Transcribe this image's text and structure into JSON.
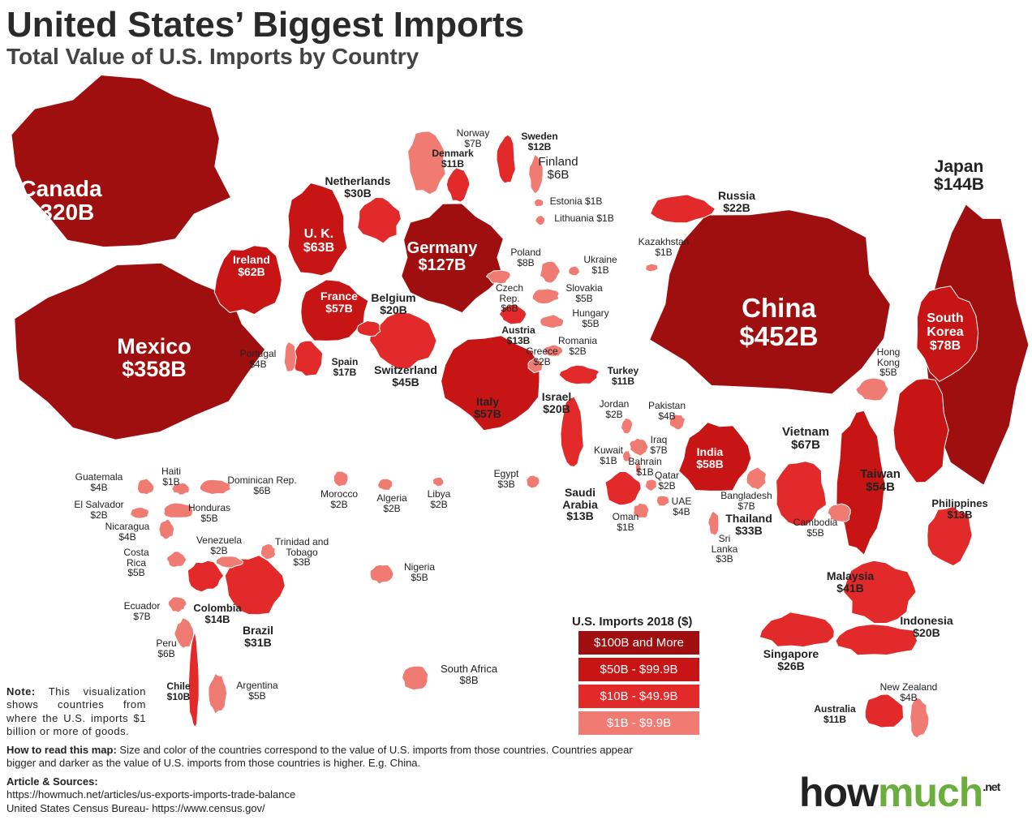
{
  "header": {
    "title": "United States’ Biggest Imports",
    "subtitle": "Total Value of U.S. Imports by Country"
  },
  "legend": {
    "title": "U.S. Imports 2018 ($)",
    "items": [
      {
        "label": "$100B and More",
        "color": "#a00f0f"
      },
      {
        "label": "$50B - $99.9B",
        "color": "#c71515"
      },
      {
        "label": "$10B - $49.9B",
        "color": "#e22a2a"
      },
      {
        "label": "$1B - $9.9B",
        "color": "#ef7b73"
      }
    ]
  },
  "countries": [
    {
      "name": "Canada",
      "value": "$320B",
      "color": "#a00f0f"
    },
    {
      "name": "Mexico",
      "value": "$358B",
      "color": "#a00f0f"
    },
    {
      "name": "Japan",
      "value": "$144B",
      "color": "#a00f0f"
    },
    {
      "name": "China",
      "value": "$452B",
      "color": "#a00f0f"
    },
    {
      "name": "Germany",
      "value": "$127B",
      "color": "#a00f0f"
    },
    {
      "name": "South Korea",
      "value": "$78B",
      "color": "#c71515"
    },
    {
      "name": "Vietnam",
      "value": "$67B",
      "color": "#c71515"
    },
    {
      "name": "U. K.",
      "value": "$63B",
      "color": "#c71515"
    },
    {
      "name": "Ireland",
      "value": "$62B",
      "color": "#c71515"
    },
    {
      "name": "France",
      "value": "$57B",
      "color": "#c71515"
    },
    {
      "name": "Italy",
      "value": "$57B",
      "color": "#c71515"
    },
    {
      "name": "Taiwan",
      "value": "$54B",
      "color": "#c71515"
    },
    {
      "name": "India",
      "value": "$58B",
      "color": "#c71515"
    },
    {
      "name": "Switzerland",
      "value": "$45B",
      "color": "#e22a2a"
    },
    {
      "name": "Malaysia",
      "value": "$41B",
      "color": "#e22a2a"
    },
    {
      "name": "Thailand",
      "value": "$33B",
      "color": "#e22a2a"
    },
    {
      "name": "Brazil",
      "value": "$31B",
      "color": "#e22a2a"
    },
    {
      "name": "Netherlands",
      "value": "$30B",
      "color": "#e22a2a"
    },
    {
      "name": "Singapore",
      "value": "$26B",
      "color": "#e22a2a"
    },
    {
      "name": "Russia",
      "value": "$22B",
      "color": "#e22a2a"
    },
    {
      "name": "Indonesia",
      "value": "$20B",
      "color": "#e22a2a"
    },
    {
      "name": "Belgium",
      "value": "$20B",
      "color": "#e22a2a"
    },
    {
      "name": "Israel",
      "value": "$20B",
      "color": "#e22a2a"
    },
    {
      "name": "Colombia",
      "value": "$14B",
      "color": "#e22a2a"
    },
    {
      "name": "Saudi Arabia",
      "value": "$13B",
      "color": "#e22a2a"
    },
    {
      "name": "Philippines",
      "value": "$13B",
      "color": "#e22a2a"
    },
    {
      "name": "Austria",
      "value": "$13B",
      "color": "#e22a2a"
    },
    {
      "name": "Sweden",
      "value": "$12B",
      "color": "#e22a2a"
    },
    {
      "name": "Denmark",
      "value": "$11B",
      "color": "#e22a2a"
    },
    {
      "name": "Turkey",
      "value": "$11B",
      "color": "#e22a2a"
    },
    {
      "name": "Australia",
      "value": "$11B",
      "color": "#e22a2a"
    },
    {
      "name": "Chile",
      "value": "$10B",
      "color": "#e22a2a"
    },
    {
      "name": "Poland",
      "value": "$8B",
      "color": "#ef7b73"
    },
    {
      "name": "South Africa",
      "value": "$8B",
      "color": "#ef7b73"
    },
    {
      "name": "Norway",
      "value": "$7B",
      "color": "#ef7b73"
    },
    {
      "name": "Ecuador",
      "value": "$7B",
      "color": "#ef7b73"
    },
    {
      "name": "Iraq",
      "value": "$7B",
      "color": "#ef7b73"
    },
    {
      "name": "Bangladesh",
      "value": "$7B",
      "color": "#ef7b73"
    },
    {
      "name": "Finland",
      "value": "$6B",
      "color": "#ef7b73"
    },
    {
      "name": "Czech Rep.",
      "value": "$6B",
      "color": "#ef7b73"
    },
    {
      "name": "Peru",
      "value": "$6B",
      "color": "#ef7b73"
    },
    {
      "name": "Dominican Rep.",
      "value": "$6B",
      "color": "#ef7b73"
    },
    {
      "name": "Argentina",
      "value": "$5B",
      "color": "#ef7b73"
    },
    {
      "name": "Hong Kong",
      "value": "$5B",
      "color": "#ef7b73"
    },
    {
      "name": "Slovakia",
      "value": "$5B",
      "color": "#ef7b73"
    },
    {
      "name": "Hungary",
      "value": "$5B",
      "color": "#ef7b73"
    },
    {
      "name": "Costa Rica",
      "value": "$5B",
      "color": "#ef7b73"
    },
    {
      "name": "Honduras",
      "value": "$5B",
      "color": "#ef7b73"
    },
    {
      "name": "Nigeria",
      "value": "$5B",
      "color": "#ef7b73"
    },
    {
      "name": "Cambodia",
      "value": "$5B",
      "color": "#ef7b73"
    },
    {
      "name": "Pakistan",
      "value": "$4B",
      "color": "#ef7b73"
    },
    {
      "name": "Guatemala",
      "value": "$4B",
      "color": "#ef7b73"
    },
    {
      "name": "Nicaragua",
      "value": "$4B",
      "color": "#ef7b73"
    },
    {
      "name": "UAE",
      "value": "$4B",
      "color": "#ef7b73"
    },
    {
      "name": "New Zealand",
      "value": "$4B",
      "color": "#ef7b73"
    },
    {
      "name": "Portugal",
      "value": "$4B",
      "color": "#ef7b73"
    },
    {
      "name": "Sri Lanka",
      "value": "$3B",
      "color": "#ef7b73"
    },
    {
      "name": "Egypt",
      "value": "$3B",
      "color": "#ef7b73"
    },
    {
      "name": "Trinidad and Tobago",
      "value": "$3B",
      "color": "#ef7b73"
    },
    {
      "name": "Morocco",
      "value": "$2B",
      "color": "#ef7b73"
    },
    {
      "name": "Algeria",
      "value": "$2B",
      "color": "#ef7b73"
    },
    {
      "name": "Libya",
      "value": "$2B",
      "color": "#ef7b73"
    },
    {
      "name": "Greece",
      "value": "$2B",
      "color": "#ef7b73"
    },
    {
      "name": "Romania",
      "value": "$2B",
      "color": "#ef7b73"
    },
    {
      "name": "Jordan",
      "value": "$2B",
      "color": "#ef7b73"
    },
    {
      "name": "Qatar",
      "value": "$2B",
      "color": "#ef7b73"
    },
    {
      "name": "Venezuela",
      "value": "$2B",
      "color": "#ef7b73"
    },
    {
      "name": "El Salvador",
      "value": "$2B",
      "color": "#ef7b73"
    },
    {
      "name": "Haiti",
      "value": "$1B",
      "color": "#ef7b73"
    },
    {
      "name": "Kuwait",
      "value": "$1B",
      "color": "#ef7b73"
    },
    {
      "name": "Bahrain",
      "value": "$1B",
      "color": "#ef7b73"
    },
    {
      "name": "Oman",
      "value": "$1B",
      "color": "#ef7b73"
    },
    {
      "name": "Estonia",
      "value": "$1B",
      "color": "#ef7b73"
    },
    {
      "name": "Lithuania",
      "value": "$1B",
      "color": "#ef7b73"
    },
    {
      "name": "Ukraine",
      "value": "$1B",
      "color": "#ef7b73"
    },
    {
      "name": "Kazakhstan",
      "value": "$1B",
      "color": "#ef7b73"
    },
    {
      "name": "Spain",
      "value": "$17B",
      "color": "#e22a2a"
    }
  ],
  "note": {
    "label": "Note:",
    "text": "This visualization shows countries from where the U.S. imports $1 billion or more of goods."
  },
  "how_to_read": {
    "label": "How to read this map:",
    "text": "Size and color of the countries correspond to the value of U.S. imports from those countries. Countries appear bigger and darker as the value of U.S. imports from those countries is higher. E.g. China."
  },
  "sources": {
    "title": "Article & Sources:",
    "lines": [
      "https://howmuch.net/articles/us-exports-imports-trade-balance",
      "United States Census Bureau- https://www.census.gov/"
    ]
  },
  "logo": {
    "how": "how",
    "much": "much",
    "net": ".net"
  }
}
